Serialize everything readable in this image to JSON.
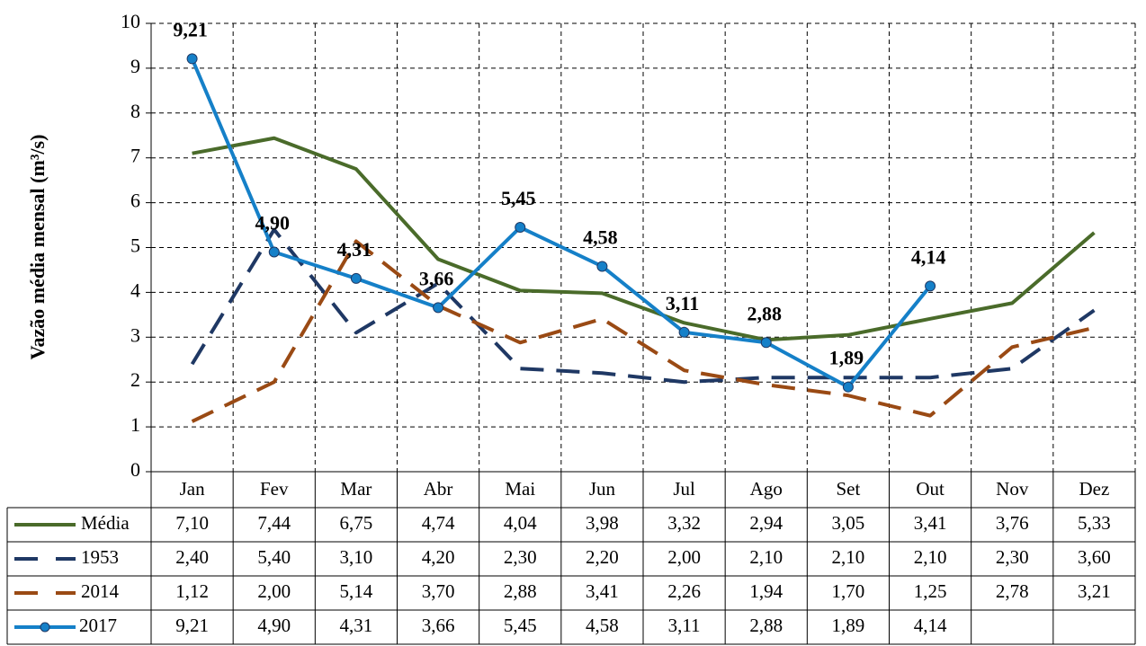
{
  "chart_data": {
    "type": "line",
    "y_label": "Vazão média mensal (m³/s)",
    "categories": [
      "Jan",
      "Fev",
      "Mar",
      "Abr",
      "Mai",
      "Jun",
      "Jul",
      "Ago",
      "Set",
      "Out",
      "Nov",
      "Dez"
    ],
    "ylim": [
      0,
      10
    ],
    "yticks": [
      0,
      1,
      2,
      3,
      4,
      5,
      6,
      7,
      8,
      9,
      10
    ],
    "grid": true,
    "series": [
      {
        "name": "Média",
        "color": "#4a6b2a",
        "dashed": false,
        "markers": false,
        "data_labels": false,
        "values": [
          7.1,
          7.44,
          6.75,
          4.74,
          4.04,
          3.98,
          3.32,
          2.94,
          3.05,
          3.41,
          3.76,
          5.33
        ],
        "value_labels": [
          "7,10",
          "7,44",
          "6,75",
          "4,74",
          "4,04",
          "3,98",
          "3,32",
          "2,94",
          "3,05",
          "3,41",
          "3,76",
          "5,33"
        ]
      },
      {
        "name": "1953",
        "color": "#1f3864",
        "dashed": true,
        "markers": false,
        "data_labels": false,
        "values": [
          2.4,
          5.4,
          3.1,
          4.2,
          2.3,
          2.2,
          2.0,
          2.1,
          2.1,
          2.1,
          2.3,
          3.6
        ],
        "value_labels": [
          "2,40",
          "5,40",
          "3,10",
          "4,20",
          "2,30",
          "2,20",
          "2,00",
          "2,10",
          "2,10",
          "2,10",
          "2,30",
          "3,60"
        ]
      },
      {
        "name": "2014",
        "color": "#9a4a14",
        "dashed": true,
        "markers": false,
        "data_labels": false,
        "values": [
          1.12,
          2.0,
          5.14,
          3.7,
          2.88,
          3.41,
          2.26,
          1.94,
          1.7,
          1.25,
          2.78,
          3.21
        ],
        "value_labels": [
          "1,12",
          "2,00",
          "5,14",
          "3,70",
          "2,88",
          "3,41",
          "2,26",
          "1,94",
          "1,70",
          "1,25",
          "2,78",
          "3,21"
        ]
      },
      {
        "name": "2017",
        "color": "#1580c8",
        "dashed": false,
        "markers": true,
        "data_labels": true,
        "values": [
          9.21,
          4.9,
          4.31,
          3.66,
          5.45,
          4.58,
          3.11,
          2.88,
          1.89,
          4.14,
          null,
          null
        ],
        "value_labels": [
          "9,21",
          "4,90",
          "4,31",
          "3,66",
          "5,45",
          "4,58",
          "3,11",
          "2,88",
          "1,89",
          "4,14",
          null,
          null
        ]
      }
    ]
  }
}
